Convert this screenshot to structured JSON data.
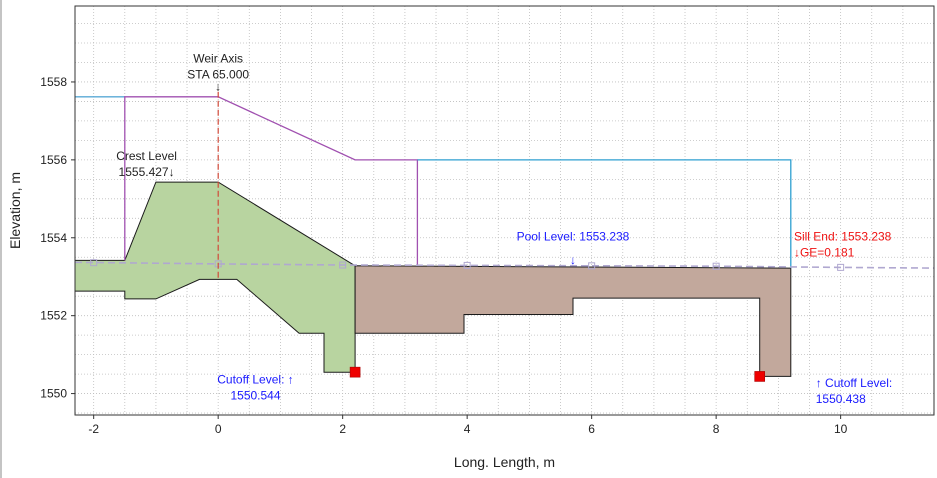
{
  "chart_data": {
    "type": "line",
    "xlabel": "Long. Length, m",
    "ylabel": "Elevation, m",
    "xlim": [
      -2.3,
      11.5
    ],
    "ylim": [
      1549.45,
      1559.95
    ],
    "xticks": [
      -2,
      0,
      2,
      4,
      6,
      8,
      10
    ],
    "yticks": [
      1550,
      1552,
      1554,
      1556,
      1558
    ],
    "xtick_labels": [
      "-2",
      "0",
      "2",
      "4",
      "6",
      "8",
      "10"
    ],
    "ytick_labels": [
      "1550",
      "1552",
      "1554",
      "1556",
      "1558"
    ],
    "grid": true,
    "colors": {
      "weir_fill": "#b8d4a0",
      "apron_fill": "#c2a89c",
      "upstream_water": "#5aa9d6",
      "energy_line": "#a050b0",
      "downstream_water": "#2e9fd0",
      "hydraulic_gradient": "#b0a8d0",
      "axis_line": "#d04a3a",
      "blue_text": "#1a1aff",
      "red_text": "#ee1111",
      "red_marker": "#ee0000"
    },
    "series": [
      {
        "kind": "polygon",
        "fill": "weir_fill",
        "points": [
          [
            -2.3,
            1553.42
          ],
          [
            -1.5,
            1553.42
          ],
          [
            -1.0,
            1555.43
          ],
          [
            0.0,
            1555.43
          ],
          [
            2.2,
            1553.28
          ],
          [
            2.2,
            1550.55
          ],
          [
            1.7,
            1550.55
          ],
          [
            1.7,
            1551.55
          ],
          [
            1.3,
            1551.55
          ],
          [
            0.3,
            1552.93
          ],
          [
            -0.3,
            1552.93
          ],
          [
            -1.0,
            1552.43
          ],
          [
            -1.5,
            1552.43
          ],
          [
            -1.5,
            1552.63
          ],
          [
            -2.3,
            1552.63
          ]
        ]
      },
      {
        "kind": "polygon",
        "fill": "apron_fill",
        "points": [
          [
            2.2,
            1553.28
          ],
          [
            9.2,
            1553.22
          ],
          [
            9.2,
            1550.44
          ],
          [
            8.7,
            1550.44
          ],
          [
            8.7,
            1552.45
          ],
          [
            5.7,
            1552.45
          ],
          [
            5.7,
            1552.03
          ],
          [
            3.95,
            1552.03
          ],
          [
            3.95,
            1551.55
          ],
          [
            2.2,
            1551.55
          ]
        ]
      },
      {
        "kind": "line",
        "color": "upstream_water",
        "points": [
          [
            -2.3,
            1557.62
          ],
          [
            -1.5,
            1557.62
          ]
        ]
      },
      {
        "kind": "line",
        "color": "energy_line",
        "points": [
          [
            -1.5,
            1553.42
          ],
          [
            -1.5,
            1557.62
          ],
          [
            0.0,
            1557.62
          ],
          [
            2.2,
            1556.0
          ],
          [
            3.2,
            1556.0
          ],
          [
            3.2,
            1553.3
          ]
        ]
      },
      {
        "kind": "line",
        "color": "downstream_water",
        "points": [
          [
            3.2,
            1556.0
          ],
          [
            9.2,
            1556.0
          ],
          [
            9.2,
            1553.22
          ]
        ]
      },
      {
        "kind": "dashed-line",
        "color": "hydraulic_gradient",
        "points": [
          [
            -2.3,
            1553.37
          ],
          [
            0.0,
            1553.33
          ],
          [
            2.0,
            1553.3
          ],
          [
            4.0,
            1553.29
          ],
          [
            6.0,
            1553.28
          ],
          [
            8.0,
            1553.27
          ],
          [
            10.0,
            1553.24
          ],
          [
            11.5,
            1553.22
          ]
        ]
      },
      {
        "kind": "markers",
        "color": "hydraulic_gradient",
        "points": [
          [
            -2.0,
            1553.36
          ],
          [
            0.0,
            1553.33
          ],
          [
            2.0,
            1553.3
          ],
          [
            4.0,
            1553.29
          ],
          [
            6.0,
            1553.28
          ],
          [
            8.0,
            1553.27
          ],
          [
            10.0,
            1553.24
          ]
        ]
      },
      {
        "kind": "vertical-dashed",
        "color": "axis_line",
        "points": [
          [
            0.0,
            1557.75
          ],
          [
            0.0,
            1552.93
          ]
        ]
      },
      {
        "kind": "red-squares",
        "color": "red_marker",
        "points": [
          [
            2.2,
            1550.55
          ],
          [
            8.7,
            1550.44
          ]
        ]
      }
    ],
    "annotations": [
      {
        "lines": [
          "Weir Axis",
          "STA 65.000"
        ],
        "x": 0.0,
        "y": 1558.5,
        "color": "#222222",
        "anchor": "middle"
      },
      {
        "lines": [
          "↓"
        ],
        "x": 0.0,
        "y": 1557.78,
        "color": "#222222",
        "anchor": "middle"
      },
      {
        "lines": [
          "Crest Level",
          "1555.427↓"
        ],
        "x": -1.15,
        "y": 1556.0,
        "color": "#222222",
        "anchor": "middle"
      },
      {
        "lines": [
          "Pool Level: 1553.238"
        ],
        "x": 5.7,
        "y": 1553.93,
        "color": "blue_text",
        "anchor": "middle"
      },
      {
        "lines": [
          "↓"
        ],
        "x": 5.7,
        "y": 1553.33,
        "color": "blue_text",
        "anchor": "middle"
      },
      {
        "lines": [
          "Sill End: 1553.238",
          "↓GE=0.181"
        ],
        "x": 9.25,
        "y": 1553.93,
        "color": "red_text",
        "anchor": "start"
      },
      {
        "lines": [
          "Cutoff Level: ↑",
          "1550.544"
        ],
        "x": 0.6,
        "y": 1550.26,
        "color": "blue_text",
        "anchor": "middle"
      },
      {
        "lines": [
          "↑ Cutoff Level:",
          "1550.438"
        ],
        "x": 9.6,
        "y": 1550.17,
        "color": "blue_text",
        "anchor": "start"
      }
    ]
  }
}
